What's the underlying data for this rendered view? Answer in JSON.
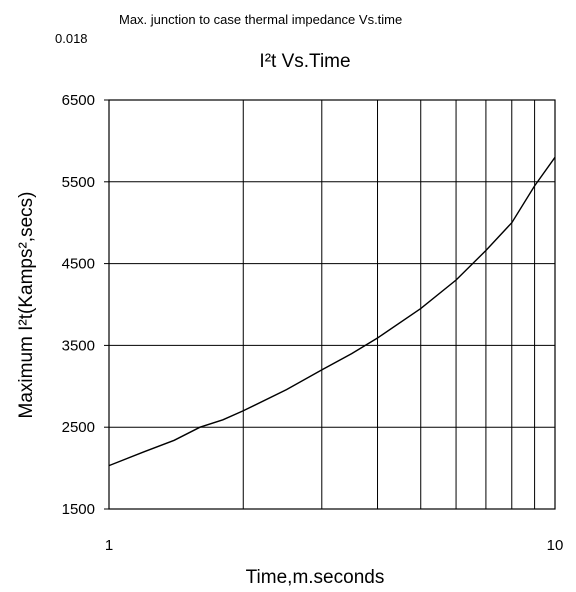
{
  "header_text": "Max. junction to case thermal impedance Vs.time",
  "clipped_text": "0.018",
  "chart_data": {
    "type": "line",
    "title": "I²t  Vs.Time",
    "xlabel": "Time,m.seconds",
    "ylabel": "Maximum I²t(Kamps²,secs)",
    "xscale": "log",
    "xlim": [
      1,
      10
    ],
    "ylim": [
      1500,
      6500
    ],
    "x_ticks": [
      "1",
      "10"
    ],
    "y_ticks": [
      "6500",
      "5500",
      "4500",
      "3500",
      "2500",
      "1500"
    ],
    "y_tick_values": [
      6500,
      5500,
      4500,
      3500,
      2500,
      1500
    ],
    "grid": true,
    "series": [
      {
        "x": [
          1,
          1.2,
          1.4,
          1.6,
          1.8,
          2,
          2.5,
          3,
          3.5,
          4,
          5,
          6,
          7,
          8,
          9,
          10
        ],
        "values": [
          2030,
          2200,
          2340,
          2500,
          2590,
          2700,
          2960,
          3200,
          3400,
          3590,
          3950,
          4300,
          4660,
          5000,
          5450,
          5800
        ]
      }
    ]
  }
}
